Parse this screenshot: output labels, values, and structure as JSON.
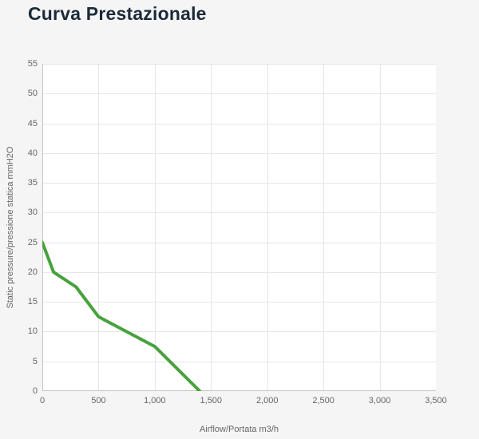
{
  "title": "Curva Prestazionale",
  "colors": {
    "page_background": "#f5f5f5",
    "plot_background": "#ffffff",
    "gridline": "#e6e6e6",
    "axis_line": "#c5c5c5",
    "tick_text": "#666666",
    "title_text": "#1c2a39",
    "curve": "#47a23d"
  },
  "chart_data": {
    "type": "line",
    "title": "Curva Prestazionale",
    "xlabel": "Airflow/Portata m3/h",
    "ylabel": "Static pressure/pressione statica mmH2O",
    "xlim": [
      0,
      3500
    ],
    "ylim": [
      0,
      55
    ],
    "grid": true,
    "legend": false,
    "x_ticks": [
      0,
      500,
      1000,
      1500,
      2000,
      2500,
      3000,
      3500
    ],
    "x_tick_labels": [
      "0",
      "500",
      "1,000",
      "1,500",
      "2,000",
      "2,500",
      "3,000",
      "3,500"
    ],
    "y_ticks": [
      0,
      5,
      10,
      15,
      20,
      25,
      30,
      35,
      40,
      45,
      50,
      55
    ],
    "y_tick_labels": [
      "0",
      "5",
      "10",
      "15",
      "20",
      "25",
      "30",
      "35",
      "40",
      "45",
      "50",
      "55"
    ],
    "series": [
      {
        "name": "Curva prestazionale",
        "color": "#47a23d",
        "x": [
          0,
          100,
          300,
          500,
          750,
          1000,
          1400
        ],
        "y": [
          25,
          20,
          17.5,
          12.5,
          10,
          7.5,
          0
        ]
      }
    ]
  }
}
